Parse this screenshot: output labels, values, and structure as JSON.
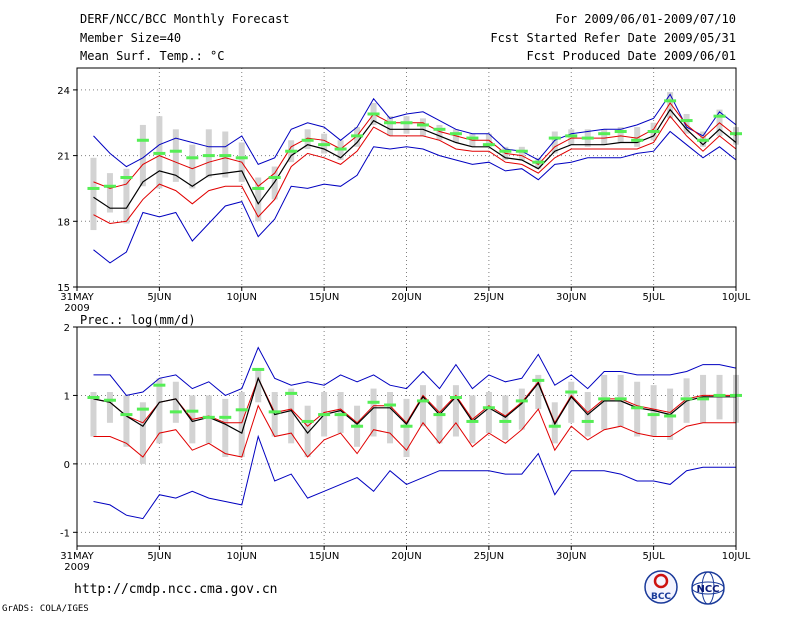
{
  "header": {
    "title": "DERF/NCC/BCC Monthly Forecast",
    "member_size": "Member Size=40",
    "variable": "Mean Surf. Temp.: °C",
    "period": "For 2009/06/01-2009/07/10",
    "started": "Fcst Started Refer Date 2009/05/31",
    "produced": "Fcst Produced Date 2009/06/01"
  },
  "footer": {
    "url": "http://cmdp.ncc.cma.gov.cn",
    "credit": "GrADS: COLA/IGES",
    "logo_left": "BCC",
    "logo_right": "NCC"
  },
  "colors": {
    "mean": "#000000",
    "spread": "#e00000",
    "extreme": "#0000c0",
    "box": "#d3d3d3",
    "median": "#55ee55"
  },
  "chart_data": [
    {
      "type": "line",
      "title": "Mean Surf. Temp.: °C",
      "ylim": [
        15,
        25
      ],
      "yticks": [
        15,
        18,
        21,
        24
      ],
      "xlim": [
        0,
        40
      ],
      "xticks": [
        {
          "d": 0,
          "label": "31MAY",
          "sub": "2009"
        },
        {
          "d": 5,
          "label": "5JUN"
        },
        {
          "d": 10,
          "label": "10JUN"
        },
        {
          "d": 15,
          "label": "15JUN"
        },
        {
          "d": 20,
          "label": "20JUN"
        },
        {
          "d": 25,
          "label": "25JUN"
        },
        {
          "d": 30,
          "label": "30JUN"
        },
        {
          "d": 35,
          "label": "5JUL"
        },
        {
          "d": 40,
          "label": "10JUL"
        }
      ],
      "x": [
        1,
        2,
        3,
        4,
        5,
        6,
        7,
        8,
        9,
        10,
        11,
        12,
        13,
        14,
        15,
        16,
        17,
        18,
        19,
        20,
        21,
        22,
        23,
        24,
        25,
        26,
        27,
        28,
        29,
        30,
        31,
        32,
        33,
        34,
        35,
        36,
        37,
        38,
        39,
        40
      ],
      "series": [
        {
          "name": "max",
          "role": "extreme",
          "values": [
            21.9,
            21.1,
            20.5,
            20.9,
            21.5,
            21.8,
            21.6,
            21.4,
            21.4,
            21.9,
            20.6,
            20.9,
            22.2,
            22.5,
            22.3,
            21.7,
            22.3,
            23.6,
            22.7,
            22.9,
            23.0,
            22.6,
            22.2,
            22.0,
            22.0,
            21.3,
            21.2,
            20.8,
            21.7,
            22.0,
            22.1,
            22.2,
            22.2,
            22.4,
            22.7,
            23.8,
            22.3,
            21.9,
            23.0,
            22.4
          ]
        },
        {
          "name": "mean+sd",
          "role": "spread",
          "values": [
            19.8,
            19.5,
            19.7,
            20.6,
            21.0,
            20.7,
            20.4,
            20.7,
            20.9,
            20.7,
            19.6,
            20.2,
            21.4,
            21.8,
            21.7,
            21.3,
            21.9,
            22.9,
            22.5,
            22.5,
            22.5,
            22.1,
            21.9,
            21.7,
            21.7,
            21.1,
            21.0,
            20.6,
            21.4,
            21.8,
            21.8,
            21.8,
            21.9,
            21.8,
            22.2,
            23.4,
            22.4,
            21.8,
            22.5,
            21.9
          ]
        },
        {
          "name": "mean",
          "role": "mean",
          "values": [
            19.1,
            18.6,
            18.6,
            19.8,
            20.3,
            20.1,
            19.6,
            20.1,
            20.2,
            20.3,
            18.8,
            19.8,
            21.0,
            21.5,
            21.3,
            20.9,
            21.6,
            22.6,
            22.2,
            22.2,
            22.2,
            21.9,
            21.6,
            21.4,
            21.4,
            20.9,
            20.8,
            20.4,
            21.2,
            21.5,
            21.5,
            21.5,
            21.6,
            21.6,
            21.9,
            23.1,
            22.2,
            21.5,
            22.2,
            21.6
          ]
        },
        {
          "name": "mean-sd",
          "role": "spread",
          "values": [
            18.3,
            17.9,
            18.0,
            19.0,
            19.7,
            19.4,
            18.8,
            19.4,
            19.6,
            19.6,
            18.2,
            19.0,
            20.5,
            21.1,
            20.9,
            20.6,
            21.2,
            22.3,
            21.9,
            21.9,
            21.9,
            21.7,
            21.3,
            21.2,
            21.2,
            20.7,
            20.6,
            20.2,
            20.9,
            21.3,
            21.3,
            21.3,
            21.3,
            21.3,
            21.6,
            22.8,
            21.9,
            21.2,
            21.9,
            21.3
          ]
        },
        {
          "name": "min",
          "role": "extreme",
          "values": [
            16.7,
            16.1,
            16.6,
            18.4,
            18.2,
            18.4,
            17.1,
            17.9,
            18.7,
            18.9,
            17.3,
            18.1,
            19.6,
            19.5,
            19.7,
            19.6,
            20.1,
            21.4,
            21.3,
            21.4,
            21.3,
            21.0,
            20.8,
            20.6,
            20.7,
            20.3,
            20.4,
            19.9,
            20.6,
            20.7,
            20.9,
            20.9,
            20.9,
            21.1,
            21.2,
            22.1,
            21.5,
            20.9,
            21.4,
            20.8
          ]
        },
        {
          "name": "median",
          "role": "median",
          "values": [
            19.5,
            19.6,
            20.0,
            21.7,
            21.1,
            21.2,
            20.9,
            21.0,
            21.0,
            20.9,
            19.5,
            20.0,
            21.2,
            21.7,
            21.5,
            21.3,
            21.9,
            22.9,
            22.5,
            22.5,
            22.4,
            22.2,
            22.0,
            21.8,
            21.5,
            21.2,
            21.2,
            20.7,
            21.8,
            21.9,
            21.8,
            22.0,
            22.1,
            21.7,
            22.1,
            23.5,
            22.6,
            21.7,
            22.8,
            22.0
          ]
        }
      ],
      "box_low": [
        17.6,
        18.4,
        17.9,
        19.6,
        19.5,
        19.8,
        19.5,
        20.0,
        20.0,
        19.8,
        18.0,
        19.0,
        20.7,
        21.3,
        21.1,
        20.8,
        21.4,
        22.4,
        21.9,
        22.0,
        21.9,
        21.7,
        21.6,
        21.4,
        21.4,
        20.8,
        20.8,
        20.4,
        21.1,
        21.5,
        21.4,
        21.5,
        21.6,
        21.4,
        21.7,
        22.7,
        22.0,
        21.4,
        21.9,
        21.5
      ],
      "box_high": [
        20.9,
        20.2,
        20.4,
        22.4,
        22.8,
        22.2,
        21.5,
        22.2,
        22.1,
        21.6,
        20.0,
        20.5,
        21.7,
        22.2,
        22.0,
        21.7,
        22.3,
        23.4,
        22.8,
        22.8,
        22.7,
        22.4,
        22.2,
        22.0,
        22.0,
        21.4,
        21.4,
        20.9,
        22.1,
        22.2,
        22.2,
        22.2,
        22.3,
        22.3,
        22.5,
        23.9,
        22.9,
        22.1,
        23.1,
        22.3
      ]
    },
    {
      "type": "line",
      "title": "Prec.: log(mm/d)",
      "ylim": [
        -1.2,
        2
      ],
      "yticks": [
        -1,
        0,
        1,
        2
      ],
      "xlim": [
        0,
        40
      ],
      "xticks": [
        {
          "d": 0,
          "label": "31MAY",
          "sub": "2009"
        },
        {
          "d": 5,
          "label": "5JUN"
        },
        {
          "d": 10,
          "label": "10JUN"
        },
        {
          "d": 15,
          "label": "15JUN"
        },
        {
          "d": 20,
          "label": "20JUN"
        },
        {
          "d": 25,
          "label": "25JUN"
        },
        {
          "d": 30,
          "label": "30JUN"
        },
        {
          "d": 35,
          "label": "5JUL"
        },
        {
          "d": 40,
          "label": "10JUL"
        }
      ],
      "x": [
        1,
        2,
        3,
        4,
        5,
        6,
        7,
        8,
        9,
        10,
        11,
        12,
        13,
        14,
        15,
        16,
        17,
        18,
        19,
        20,
        21,
        22,
        23,
        24,
        25,
        26,
        27,
        28,
        29,
        30,
        31,
        32,
        33,
        34,
        35,
        36,
        37,
        38,
        39,
        40
      ],
      "series": [
        {
          "name": "max",
          "role": "extreme",
          "values": [
            1.3,
            1.3,
            1.0,
            1.05,
            1.25,
            1.3,
            1.1,
            1.2,
            1.0,
            1.1,
            1.7,
            1.25,
            1.15,
            1.2,
            1.15,
            1.3,
            1.2,
            1.3,
            1.15,
            1.1,
            1.35,
            1.1,
            1.45,
            1.1,
            1.3,
            1.2,
            1.25,
            1.6,
            1.15,
            1.3,
            1.1,
            1.35,
            1.35,
            1.3,
            1.3,
            1.3,
            1.35,
            1.45,
            1.45,
            1.4
          ]
        },
        {
          "name": "mean+sd",
          "role": "spread",
          "values": [
            0.95,
            0.9,
            0.7,
            0.6,
            0.9,
            0.95,
            0.65,
            0.7,
            0.6,
            0.6,
            1.25,
            0.75,
            0.8,
            0.55,
            0.75,
            0.8,
            0.6,
            0.85,
            0.85,
            0.6,
            1.0,
            0.75,
            1.0,
            0.65,
            0.85,
            0.7,
            0.9,
            1.2,
            0.6,
            1.0,
            0.75,
            0.95,
            0.95,
            0.85,
            0.8,
            0.75,
            0.95,
            1.0,
            1.0,
            1.0
          ]
        },
        {
          "name": "mean",
          "role": "mean",
          "values": [
            0.95,
            0.9,
            0.7,
            0.55,
            0.9,
            0.95,
            0.62,
            0.68,
            0.58,
            0.45,
            1.25,
            0.72,
            0.78,
            0.45,
            0.72,
            0.78,
            0.58,
            0.82,
            0.82,
            0.58,
            0.98,
            0.72,
            0.98,
            0.62,
            0.82,
            0.68,
            0.88,
            1.18,
            0.58,
            0.98,
            0.72,
            0.92,
            0.92,
            0.82,
            0.78,
            0.72,
            0.92,
            0.98,
            0.98,
            0.98
          ]
        },
        {
          "name": "mean-sd",
          "role": "spread",
          "values": [
            0.4,
            0.4,
            0.3,
            0.1,
            0.45,
            0.5,
            0.2,
            0.3,
            0.15,
            0.1,
            0.85,
            0.4,
            0.45,
            0.1,
            0.35,
            0.45,
            0.15,
            0.5,
            0.45,
            0.2,
            0.6,
            0.3,
            0.6,
            0.25,
            0.45,
            0.3,
            0.5,
            0.8,
            0.2,
            0.55,
            0.35,
            0.5,
            0.55,
            0.45,
            0.4,
            0.4,
            0.55,
            0.6,
            0.6,
            0.6
          ]
        },
        {
          "name": "min",
          "role": "extreme",
          "values": [
            -0.55,
            -0.6,
            -0.75,
            -0.8,
            -0.45,
            -0.5,
            -0.4,
            -0.5,
            -0.55,
            -0.6,
            0.4,
            -0.25,
            -0.15,
            -0.5,
            -0.4,
            -0.3,
            -0.2,
            -0.4,
            -0.1,
            -0.3,
            -0.2,
            -0.1,
            -0.1,
            -0.1,
            -0.1,
            -0.15,
            -0.15,
            0.15,
            -0.45,
            -0.1,
            -0.1,
            -0.1,
            -0.15,
            -0.25,
            -0.25,
            -0.3,
            -0.1,
            -0.05,
            -0.05,
            -0.05
          ]
        },
        {
          "name": "median",
          "role": "median",
          "values": [
            0.97,
            0.93,
            0.72,
            0.8,
            1.15,
            0.76,
            0.77,
            0.68,
            0.68,
            0.79,
            1.38,
            0.76,
            1.03,
            0.62,
            0.72,
            0.72,
            0.55,
            0.9,
            0.86,
            0.55,
            0.92,
            0.72,
            0.97,
            0.62,
            0.82,
            0.62,
            0.92,
            1.22,
            0.55,
            1.05,
            0.62,
            0.95,
            0.95,
            0.82,
            0.72,
            0.7,
            0.95,
            0.95,
            1.0,
            1.0
          ]
        }
      ],
      "box_low": [
        0.4,
        0.6,
        0.25,
        0.0,
        0.3,
        0.6,
        0.3,
        0.3,
        0.1,
        0.1,
        0.9,
        0.4,
        0.3,
        0.1,
        0.4,
        0.45,
        0.25,
        0.4,
        0.3,
        0.1,
        0.55,
        0.3,
        0.4,
        0.3,
        0.45,
        0.35,
        0.5,
        0.8,
        0.3,
        0.6,
        0.4,
        0.5,
        0.55,
        0.4,
        0.4,
        0.35,
        0.6,
        0.6,
        0.65,
        0.6
      ],
      "box_high": [
        1.05,
        1.05,
        1.0,
        0.9,
        1.25,
        1.2,
        1.0,
        1.0,
        0.95,
        1.05,
        1.4,
        1.05,
        1.1,
        0.85,
        1.05,
        1.05,
        0.85,
        1.1,
        1.05,
        0.95,
        1.15,
        1.0,
        1.15,
        1.0,
        1.05,
        1.0,
        1.1,
        1.3,
        0.9,
        1.2,
        1.05,
        1.3,
        1.3,
        1.2,
        1.15,
        1.1,
        1.25,
        1.3,
        1.3,
        1.3
      ]
    }
  ]
}
